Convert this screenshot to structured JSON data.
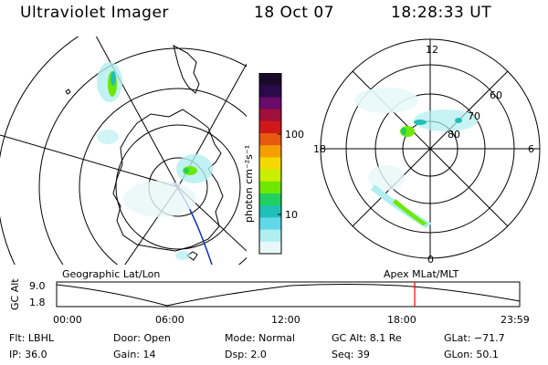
{
  "header": {
    "instrument": "Ultraviolet Imager",
    "date": "18 Oct 07",
    "time": "18:28:33 UT"
  },
  "colorbar": {
    "unit_label": "photon cm⁻²s⁻¹",
    "ticks": [
      "100",
      "10"
    ],
    "colors": [
      "#1a0a2a",
      "#2a0a4a",
      "#6a0a6a",
      "#a0103a",
      "#d01818",
      "#e85a10",
      "#f5a000",
      "#f5d800",
      "#c8f000",
      "#6ee800",
      "#20d060",
      "#20c0b8",
      "#60d8e8",
      "#b0eef0",
      "#e8f8f8"
    ]
  },
  "left_map": {
    "title": "Geographic Lat/Lon"
  },
  "polar_map": {
    "title": "Apex MLat/MLT",
    "mlt_labels": {
      "top": "12",
      "left": "18",
      "right": "6",
      "bottom": "0"
    },
    "lat_labels": [
      "60",
      "70",
      "80"
    ]
  },
  "altitude_plot": {
    "ylabel": "GC Alt",
    "y_ticks": [
      "9.0",
      "1.8"
    ],
    "x_ticks": [
      "00:00",
      "06:00",
      "12:00",
      "18:00",
      "23:59"
    ],
    "marker_color": "#ff0000"
  },
  "info": {
    "filter": "Flt: LBHL",
    "door": "Door: Open",
    "mode": "Mode: Normal",
    "gc_alt": "GC Alt: 8.1 Re",
    "glat": "GLat: −71.7",
    "ip": "IP: 36.0",
    "gain": "Gain: 14",
    "dsp": "Dsp:    2.0",
    "seq": "Seq: 39",
    "glon": "GLon:  50.1"
  }
}
